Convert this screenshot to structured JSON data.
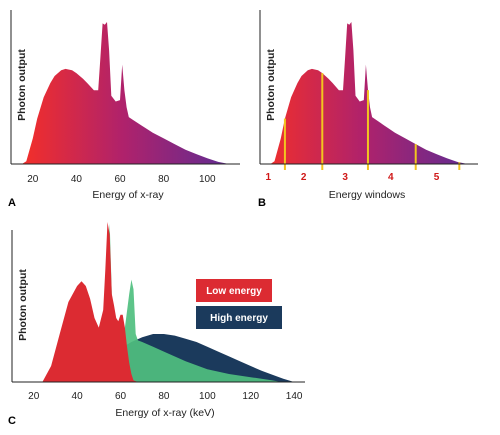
{
  "chart_data": [
    {
      "panel": "A",
      "type": "area",
      "xlabel": "Energy of x-ray",
      "ylabel": "Photon output",
      "xlim": [
        10,
        115
      ],
      "ylim": [
        0,
        1
      ],
      "xticks": [
        "20",
        "40",
        "60",
        "80",
        "100"
      ],
      "xtick_values": [
        20,
        40,
        60,
        80,
        100
      ],
      "gradient": [
        "#ee2e2e",
        "#b0226b",
        "#5c2c94"
      ],
      "x": [
        15,
        17,
        20,
        22,
        25,
        28,
        30,
        33,
        35,
        38,
        40,
        43,
        45,
        48,
        50,
        51,
        52,
        53,
        54,
        55,
        56,
        58,
        60,
        61,
        62,
        63,
        64,
        66,
        70,
        75,
        80,
        85,
        90,
        95,
        100,
        105,
        110
      ],
      "values": [
        0,
        0.02,
        0.18,
        0.32,
        0.47,
        0.57,
        0.62,
        0.66,
        0.67,
        0.66,
        0.64,
        0.6,
        0.57,
        0.52,
        0.52,
        0.75,
        0.99,
        0.98,
        1.0,
        0.8,
        0.48,
        0.44,
        0.45,
        0.7,
        0.52,
        0.4,
        0.33,
        0.31,
        0.27,
        0.22,
        0.18,
        0.14,
        0.1,
        0.07,
        0.04,
        0.015,
        0
      ]
    },
    {
      "panel": "B",
      "type": "area",
      "xlabel": "Energy windows",
      "ylabel": "Photon output",
      "xlim": [
        10,
        115
      ],
      "ylim": [
        0,
        1
      ],
      "gradient": [
        "#ee2e2e",
        "#b0226b",
        "#5c2c94"
      ],
      "x": [
        15,
        17,
        20,
        22,
        25,
        28,
        30,
        33,
        35,
        38,
        40,
        43,
        45,
        48,
        50,
        51,
        52,
        53,
        54,
        55,
        56,
        58,
        60,
        61,
        62,
        63,
        64,
        66,
        70,
        75,
        80,
        85,
        90,
        95,
        100,
        105,
        110
      ],
      "values": [
        0,
        0.02,
        0.18,
        0.32,
        0.47,
        0.57,
        0.62,
        0.66,
        0.67,
        0.66,
        0.64,
        0.6,
        0.57,
        0.52,
        0.52,
        0.75,
        0.99,
        0.98,
        1.0,
        0.8,
        0.48,
        0.44,
        0.45,
        0.7,
        0.52,
        0.4,
        0.33,
        0.31,
        0.27,
        0.22,
        0.18,
        0.14,
        0.1,
        0.07,
        0.04,
        0.015,
        0
      ],
      "window_boundaries": [
        22,
        40,
        62,
        85,
        106
      ],
      "window_labels": [
        "1",
        "2",
        "3",
        "4",
        "5"
      ],
      "window_label_positions": [
        14,
        31,
        51,
        73,
        95
      ],
      "boundary_color": "#f2c51f"
    },
    {
      "panel": "C",
      "type": "area",
      "xlabel": "Energy of x-ray (keV)",
      "ylabel": "Photon output",
      "xlim": [
        10,
        145
      ],
      "ylim": [
        0,
        1
      ],
      "xticks": [
        "20",
        "40",
        "60",
        "80",
        "100",
        "120",
        "140"
      ],
      "xtick_values": [
        20,
        40,
        60,
        80,
        100,
        120,
        140
      ],
      "legend_placement": "right",
      "series": [
        {
          "name": "High energy",
          "color": "#1b3a5c",
          "x": [
            50,
            55,
            60,
            65,
            70,
            75,
            80,
            85,
            90,
            95,
            100,
            105,
            110,
            115,
            120,
            125,
            130,
            135,
            140
          ],
          "values": [
            0,
            0.14,
            0.21,
            0.25,
            0.28,
            0.3,
            0.3,
            0.29,
            0.27,
            0.25,
            0.22,
            0.19,
            0.16,
            0.13,
            0.1,
            0.07,
            0.045,
            0.02,
            0
          ]
        },
        {
          "name": "",
          "color": "#4fbf7f",
          "x": [
            48,
            50,
            52,
            54,
            55,
            56,
            57,
            58,
            60,
            62,
            64,
            65,
            66,
            67,
            68,
            70,
            75,
            80,
            90,
            100,
            110,
            120,
            130,
            134
          ],
          "values": [
            0,
            0.12,
            0.35,
            0.72,
            0.99,
            0.55,
            0.3,
            0.28,
            0.31,
            0.34,
            0.55,
            0.64,
            0.58,
            0.3,
            0.26,
            0.25,
            0.22,
            0.19,
            0.13,
            0.08,
            0.05,
            0.03,
            0.01,
            0
          ]
        },
        {
          "name": "Low energy",
          "color": "#dc2b32",
          "x": [
            24,
            28,
            32,
            36,
            40,
            42,
            44,
            46,
            48,
            50,
            52,
            53,
            54,
            55,
            56,
            57,
            58,
            59,
            60,
            61,
            62,
            63,
            64,
            65,
            66,
            68
          ],
          "values": [
            0,
            0.1,
            0.3,
            0.5,
            0.6,
            0.63,
            0.6,
            0.52,
            0.4,
            0.34,
            0.45,
            0.7,
            1.0,
            0.92,
            0.55,
            0.48,
            0.4,
            0.38,
            0.42,
            0.42,
            0.34,
            0.22,
            0.12,
            0.05,
            0.01,
            0
          ]
        }
      ]
    }
  ]
}
